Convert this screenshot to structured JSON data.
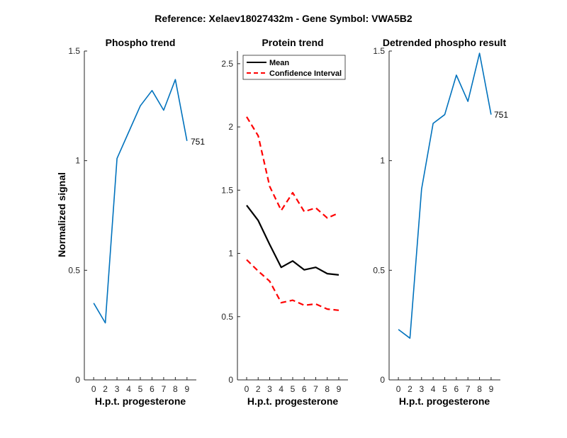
{
  "figure": {
    "suptitle": "Reference:  Xelaev18027432m - Gene Symbol:  VWA5B2"
  },
  "chart_data": [
    {
      "type": "line",
      "title": "Phospho trend",
      "xlabel": "H.p.t. progesterone",
      "ylabel": "Normalized signal",
      "xticks": [
        "0",
        "2",
        "3",
        "4",
        "5",
        "6",
        "7",
        "8",
        "9"
      ],
      "yticks": [
        "0",
        "0.5",
        "1",
        "1.5"
      ],
      "ylim": [
        0,
        1.5
      ],
      "series": [
        {
          "color": "#0072BD",
          "style": "solid",
          "values": [
            0.35,
            0.26,
            1.01,
            1.13,
            1.25,
            1.32,
            1.23,
            1.37,
            1.09
          ]
        }
      ],
      "annotation": "751"
    },
    {
      "type": "line",
      "title": "Protein trend",
      "xlabel": "H.p.t. progesterone",
      "ylabel": "",
      "xticks": [
        "0",
        "2",
        "3",
        "4",
        "5",
        "6",
        "7",
        "8",
        "9"
      ],
      "yticks": [
        "0",
        "0.5",
        "1",
        "1.5",
        "2",
        "2.5"
      ],
      "ylim": [
        0,
        2.6
      ],
      "legend": {
        "position": "top-left",
        "entries": [
          "Mean",
          "Confidence Interval"
        ]
      },
      "series": [
        {
          "name": "Mean",
          "color": "#000000",
          "style": "solid",
          "values": [
            1.38,
            1.26,
            1.07,
            0.89,
            0.94,
            0.87,
            0.89,
            0.84,
            0.83
          ]
        },
        {
          "name": "Confidence Interval",
          "color": "#FF0000",
          "style": "dashed",
          "values": [
            2.08,
            1.93,
            1.53,
            1.34,
            1.48,
            1.33,
            1.36,
            1.28,
            1.32
          ]
        },
        {
          "name": "Confidence Interval",
          "color": "#FF0000",
          "style": "dashed",
          "values": [
            0.95,
            0.86,
            0.78,
            0.61,
            0.63,
            0.59,
            0.6,
            0.56,
            0.55
          ]
        }
      ]
    },
    {
      "type": "line",
      "title": "Detrended phospho result",
      "xlabel": "H.p.t. progesterone",
      "ylabel": "",
      "xticks": [
        "0",
        "2",
        "3",
        "4",
        "5",
        "6",
        "7",
        "8",
        "9"
      ],
      "yticks": [
        "0",
        "0.5",
        "1",
        "1.5"
      ],
      "ylim": [
        0,
        1.5
      ],
      "series": [
        {
          "color": "#0072BD",
          "style": "solid",
          "values": [
            0.23,
            0.19,
            0.87,
            1.17,
            1.21,
            1.39,
            1.27,
            1.49,
            1.21
          ]
        }
      ],
      "annotation": "751"
    }
  ]
}
